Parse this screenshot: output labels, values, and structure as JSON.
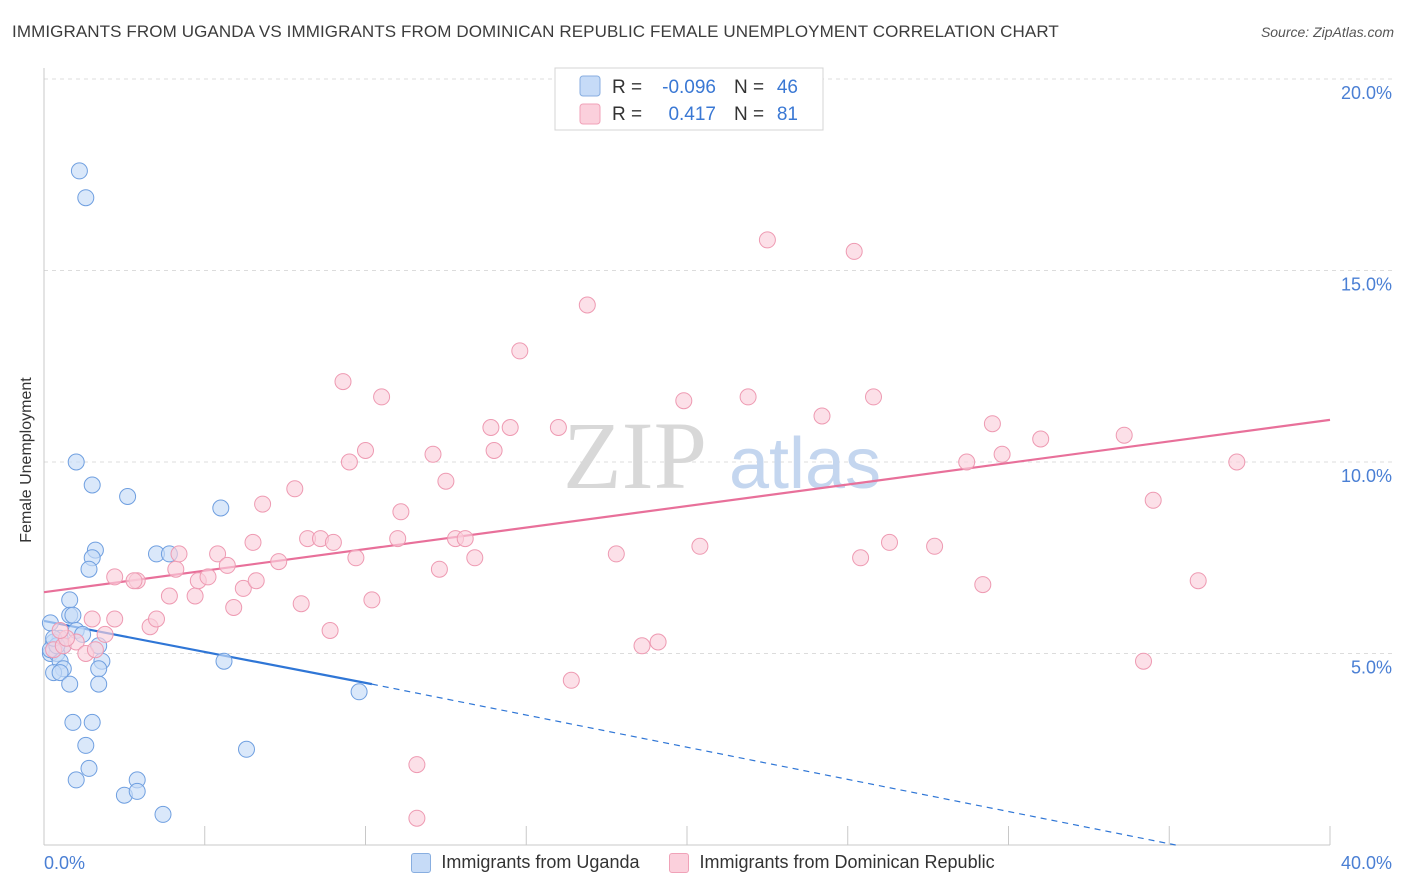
{
  "header": {
    "title": "IMMIGRANTS FROM UGANDA VS IMMIGRANTS FROM DOMINICAN REPUBLIC FEMALE UNEMPLOYMENT CORRELATION CHART",
    "source": "Source: ZipAtlas.com"
  },
  "watermark": {
    "zip": "ZIP",
    "atlas": "atlas"
  },
  "legend": {
    "rows": [
      {
        "r_label": "R =",
        "r_value": "-0.096",
        "n_label": "N =",
        "n_value": "46"
      },
      {
        "r_label": "R =",
        "r_value": "0.417",
        "n_label": "N =",
        "n_value": "81"
      }
    ]
  },
  "colors": {
    "blue_fill": "#c6dbf7",
    "blue_stroke": "#6f9fe0",
    "blue_line": "#2f76d6",
    "pink_fill": "#fbd0dc",
    "pink_stroke": "#ee9ab2",
    "pink_line": "#e8709a",
    "axis_text": "#4a7fd4",
    "grid": "#dcdcdc"
  },
  "chart_data": {
    "type": "scatter",
    "title": "IMMIGRANTS FROM UGANDA VS IMMIGRANTS FROM DOMINICAN REPUBLIC FEMALE UNEMPLOYMENT CORRELATION CHART",
    "xlabel": "",
    "ylabel": "Female Unemployment",
    "xlim": [
      0,
      40
    ],
    "ylim": [
      0,
      20
    ],
    "x_tick_labels": [
      "0.0%",
      "40.0%"
    ],
    "y_ticks": [
      5,
      10,
      15,
      20
    ],
    "y_tick_labels": [
      "5.0%",
      "10.0%",
      "15.0%",
      "20.0%"
    ],
    "legend_position": "top-center",
    "series": [
      {
        "name": "Immigrants from Uganda",
        "color": "blue",
        "points": [
          [
            1.1,
            17.6
          ],
          [
            1.3,
            16.9
          ],
          [
            1.0,
            10.0
          ],
          [
            1.5,
            9.4
          ],
          [
            2.6,
            9.1
          ],
          [
            5.5,
            8.8
          ],
          [
            1.6,
            7.7
          ],
          [
            1.5,
            7.5
          ],
          [
            1.4,
            7.2
          ],
          [
            3.5,
            7.6
          ],
          [
            3.9,
            7.6
          ],
          [
            0.8,
            6.4
          ],
          [
            0.8,
            6.0
          ],
          [
            0.9,
            6.0
          ],
          [
            0.2,
            5.8
          ],
          [
            1.0,
            5.6
          ],
          [
            1.2,
            5.5
          ],
          [
            0.5,
            5.4
          ],
          [
            0.3,
            5.3
          ],
          [
            0.6,
            5.2
          ],
          [
            1.7,
            5.2
          ],
          [
            0.2,
            5.0
          ],
          [
            0.4,
            5.0
          ],
          [
            0.5,
            4.8
          ],
          [
            1.8,
            4.8
          ],
          [
            0.6,
            4.6
          ],
          [
            1.7,
            4.6
          ],
          [
            0.3,
            4.5
          ],
          [
            0.5,
            4.5
          ],
          [
            0.8,
            4.2
          ],
          [
            1.7,
            4.2
          ],
          [
            5.6,
            4.8
          ],
          [
            9.8,
            4.0
          ],
          [
            0.9,
            3.2
          ],
          [
            1.5,
            3.2
          ],
          [
            1.3,
            2.6
          ],
          [
            1.4,
            2.0
          ],
          [
            1.0,
            1.7
          ],
          [
            2.9,
            1.7
          ],
          [
            2.5,
            1.3
          ],
          [
            2.9,
            1.4
          ],
          [
            3.7,
            0.8
          ],
          [
            6.3,
            2.5
          ],
          [
            0.2,
            5.1
          ],
          [
            0.4,
            5.2
          ],
          [
            0.3,
            5.4
          ]
        ],
        "trend": {
          "x1": 0,
          "y1": 5.85,
          "x2": 10.2,
          "y2": 4.2,
          "dashed_to_x": 35.2,
          "dashed_to_y": 0
        }
      },
      {
        "name": "Immigrants from Dominican Republic",
        "color": "pink",
        "points": [
          [
            0.3,
            5.1
          ],
          [
            0.6,
            5.2
          ],
          [
            1.0,
            5.3
          ],
          [
            0.7,
            5.4
          ],
          [
            1.3,
            5.0
          ],
          [
            1.5,
            5.9
          ],
          [
            1.9,
            5.5
          ],
          [
            2.2,
            5.9
          ],
          [
            2.2,
            7.0
          ],
          [
            2.9,
            6.9
          ],
          [
            3.3,
            5.7
          ],
          [
            3.5,
            5.9
          ],
          [
            3.9,
            6.5
          ],
          [
            4.1,
            7.2
          ],
          [
            4.2,
            7.6
          ],
          [
            4.7,
            6.5
          ],
          [
            4.8,
            6.9
          ],
          [
            5.1,
            7.0
          ],
          [
            5.4,
            7.6
          ],
          [
            5.7,
            7.3
          ],
          [
            5.9,
            6.2
          ],
          [
            6.2,
            6.7
          ],
          [
            6.6,
            6.9
          ],
          [
            6.8,
            8.9
          ],
          [
            7.3,
            7.4
          ],
          [
            7.8,
            9.3
          ],
          [
            8.0,
            6.3
          ],
          [
            8.2,
            8.0
          ],
          [
            8.6,
            8.0
          ],
          [
            8.9,
            5.6
          ],
          [
            9.3,
            12.1
          ],
          [
            9.5,
            10.0
          ],
          [
            9.7,
            7.5
          ],
          [
            10.0,
            10.3
          ],
          [
            10.2,
            6.4
          ],
          [
            10.5,
            11.7
          ],
          [
            11.0,
            8.0
          ],
          [
            11.1,
            8.7
          ],
          [
            11.6,
            2.1
          ],
          [
            11.6,
            0.7
          ],
          [
            12.1,
            10.2
          ],
          [
            12.3,
            7.2
          ],
          [
            12.5,
            9.5
          ],
          [
            12.8,
            8.0
          ],
          [
            13.1,
            8.0
          ],
          [
            13.4,
            7.5
          ],
          [
            13.9,
            10.9
          ],
          [
            14.0,
            10.3
          ],
          [
            14.5,
            10.9
          ],
          [
            14.8,
            12.9
          ],
          [
            16.0,
            10.9
          ],
          [
            16.4,
            4.3
          ],
          [
            16.9,
            14.1
          ],
          [
            17.8,
            7.6
          ],
          [
            18.6,
            5.2
          ],
          [
            19.1,
            5.3
          ],
          [
            19.9,
            11.6
          ],
          [
            20.4,
            7.8
          ],
          [
            21.9,
            11.7
          ],
          [
            22.5,
            15.8
          ],
          [
            24.2,
            11.2
          ],
          [
            25.2,
            15.5
          ],
          [
            25.4,
            7.5
          ],
          [
            25.8,
            11.7
          ],
          [
            26.3,
            7.9
          ],
          [
            27.7,
            7.8
          ],
          [
            28.7,
            10.0
          ],
          [
            29.2,
            6.8
          ],
          [
            29.5,
            11.0
          ],
          [
            29.8,
            10.2
          ],
          [
            31.0,
            10.6
          ],
          [
            33.6,
            10.7
          ],
          [
            34.2,
            4.8
          ],
          [
            34.5,
            9.0
          ],
          [
            35.9,
            6.9
          ],
          [
            37.1,
            10.0
          ],
          [
            0.5,
            5.6
          ],
          [
            1.6,
            5.1
          ],
          [
            2.8,
            6.9
          ],
          [
            6.5,
            7.9
          ],
          [
            9.0,
            7.9
          ]
        ],
        "trend": {
          "x1": 0,
          "y1": 6.6,
          "x2": 40,
          "y2": 11.1
        }
      }
    ]
  },
  "bottom_legend": {
    "items": [
      {
        "label": "Immigrants from Uganda"
      },
      {
        "label": "Immigrants from Dominican Republic"
      }
    ]
  }
}
